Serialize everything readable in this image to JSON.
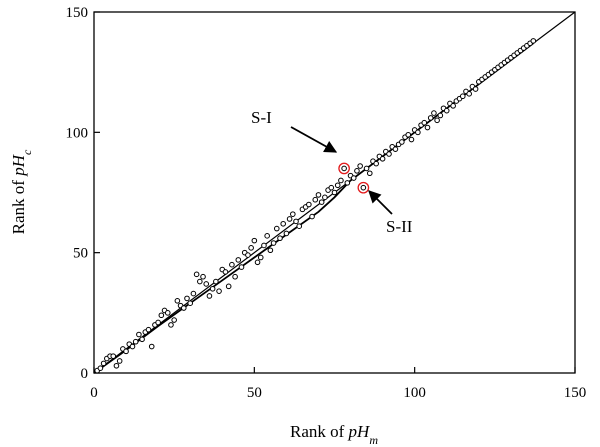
{
  "chart_data": {
    "type": "scatter",
    "xlabel": {
      "prefix": "Rank of ",
      "var": "pH",
      "sub": "m"
    },
    "ylabel": {
      "prefix": "Rank of ",
      "var": "pH",
      "sub": "c"
    },
    "xlim": [
      0,
      150
    ],
    "ylim": [
      0,
      150
    ],
    "xticks": [
      "0",
      "50",
      "100",
      "150"
    ],
    "yticks": [
      "0",
      "50",
      "100",
      "150"
    ],
    "grid": false,
    "legend": "none",
    "reference_line": {
      "x": [
        0,
        150
      ],
      "y": [
        0,
        150
      ],
      "color": "#000000"
    },
    "fit_line": {
      "x": [
        0,
        10,
        20,
        30,
        40,
        50,
        60,
        70,
        75,
        80,
        90,
        100,
        110,
        120,
        130,
        137
      ],
      "y": [
        0,
        9.5,
        19.5,
        29,
        38.5,
        48,
        57.5,
        67,
        73,
        80,
        90,
        100,
        110,
        120,
        130,
        137
      ],
      "color": "#000000"
    },
    "marker_color": "#000000",
    "highlight_color": "#e31a1c",
    "series": [
      {
        "x": [
          1,
          2,
          3,
          4,
          5,
          6,
          7,
          8,
          9,
          10,
          11,
          12,
          13,
          14,
          15,
          16,
          17,
          18,
          19,
          20,
          21,
          22,
          23,
          24,
          25,
          26,
          27,
          28,
          29,
          30,
          31,
          32,
          33,
          34,
          35,
          36,
          37,
          38,
          39,
          40,
          41,
          42,
          43,
          44,
          45,
          46,
          47,
          48,
          49,
          50,
          51,
          52,
          53,
          54,
          55,
          56,
          57,
          58,
          59,
          60,
          61,
          62,
          63,
          64,
          65,
          66,
          67,
          68,
          69,
          70,
          71,
          72,
          73,
          74,
          75,
          76,
          77,
          79,
          80,
          81,
          82,
          83,
          85,
          86,
          87,
          88,
          89,
          90,
          91,
          92,
          93,
          94,
          95,
          96,
          97,
          98,
          99,
          100,
          101,
          102,
          103,
          104,
          105,
          106,
          107,
          108,
          109,
          110,
          111,
          112,
          113,
          114,
          115,
          116,
          117,
          118,
          119,
          120,
          121,
          122,
          123,
          124,
          125,
          126,
          127,
          128,
          129,
          130,
          131,
          132,
          133,
          134,
          135,
          136,
          137
        ],
        "y": [
          1,
          2,
          4,
          6,
          7,
          7,
          3,
          5,
          10,
          9,
          12,
          11,
          13,
          16,
          14,
          17,
          18,
          11,
          20,
          21,
          24,
          26,
          25,
          20,
          22,
          30,
          28,
          27,
          31,
          29,
          33,
          41,
          38,
          40,
          37,
          32,
          35,
          38,
          34,
          43,
          42,
          36,
          45,
          40,
          47,
          44,
          50,
          49,
          52,
          55,
          46,
          48,
          53,
          57,
          51,
          54,
          60,
          56,
          62,
          58,
          64,
          66,
          63,
          61,
          68,
          69,
          70,
          65,
          72,
          74,
          71,
          73,
          76,
          77,
          75,
          78,
          80,
          79,
          82,
          81,
          84,
          86,
          85,
          83,
          88,
          87,
          90,
          89,
          92,
          91,
          94,
          93,
          95,
          96,
          98,
          99,
          97,
          101,
          100,
          103,
          104,
          102,
          106,
          108,
          105,
          107,
          110,
          109,
          112,
          111,
          113,
          114,
          115,
          117,
          116,
          119,
          118,
          121,
          122,
          123,
          124,
          125,
          126,
          127,
          128,
          129,
          130,
          131,
          132,
          133,
          134,
          135,
          136,
          137,
          138
        ]
      }
    ],
    "highlighted_points": [
      {
        "id": "S-I",
        "x": 78,
        "y": 85
      },
      {
        "id": "S-II",
        "x": 84,
        "y": 77
      }
    ],
    "annotations": [
      {
        "text": "S-I",
        "target": "S-I"
      },
      {
        "text": "S-II",
        "target": "S-II"
      }
    ]
  }
}
